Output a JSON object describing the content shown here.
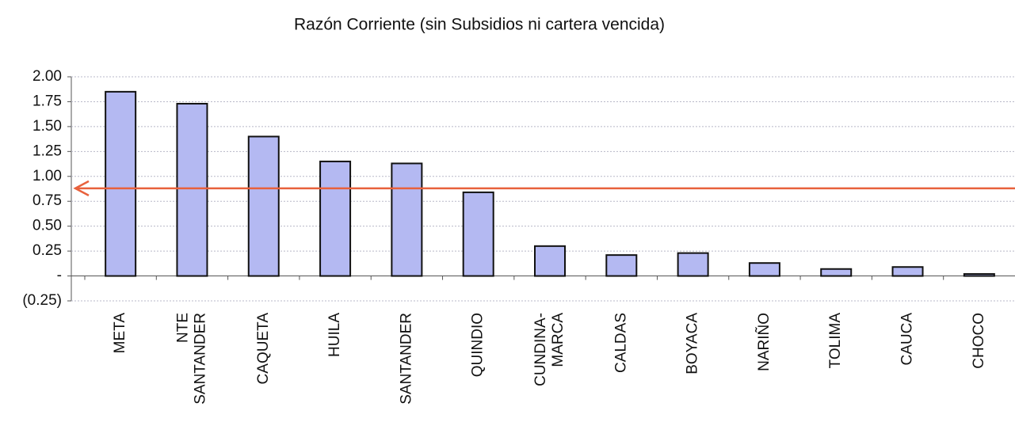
{
  "chart_data": {
    "type": "bar",
    "title": "Razón Corriente (sin Subsidios ni cartera vencida)",
    "categories": [
      "META",
      "NTE\nSANTANDER",
      "CAQUETA",
      "HUILA",
      "SANTANDER",
      "QUINDIO",
      "CUNDINA-\nMARCA",
      "CALDAS",
      "BOYACA",
      "NARIÑO",
      "TOLIMA",
      "CAUCA",
      "CHOCO"
    ],
    "values": [
      1.85,
      1.73,
      1.4,
      1.15,
      1.13,
      0.84,
      0.3,
      0.21,
      0.23,
      0.13,
      0.07,
      0.09,
      0.02
    ],
    "color": "#b4b9f2",
    "ylim": [
      -0.25,
      2.0
    ],
    "yticks": [
      {
        "value": 2.0,
        "label": "2.00"
      },
      {
        "value": 1.75,
        "label": "1.75"
      },
      {
        "value": 1.5,
        "label": "1.50"
      },
      {
        "value": 1.25,
        "label": "1.25"
      },
      {
        "value": 1.0,
        "label": "1.00"
      },
      {
        "value": 0.75,
        "label": "0.75"
      },
      {
        "value": 0.5,
        "label": "0.50"
      },
      {
        "value": 0.25,
        "label": "0.25"
      },
      {
        "value": 0,
        "label": "-"
      },
      {
        "value": -0.25,
        "label": "(0.25)"
      }
    ],
    "grid": true,
    "reference_line": {
      "value": 0.88,
      "color": "#e8613c"
    }
  }
}
